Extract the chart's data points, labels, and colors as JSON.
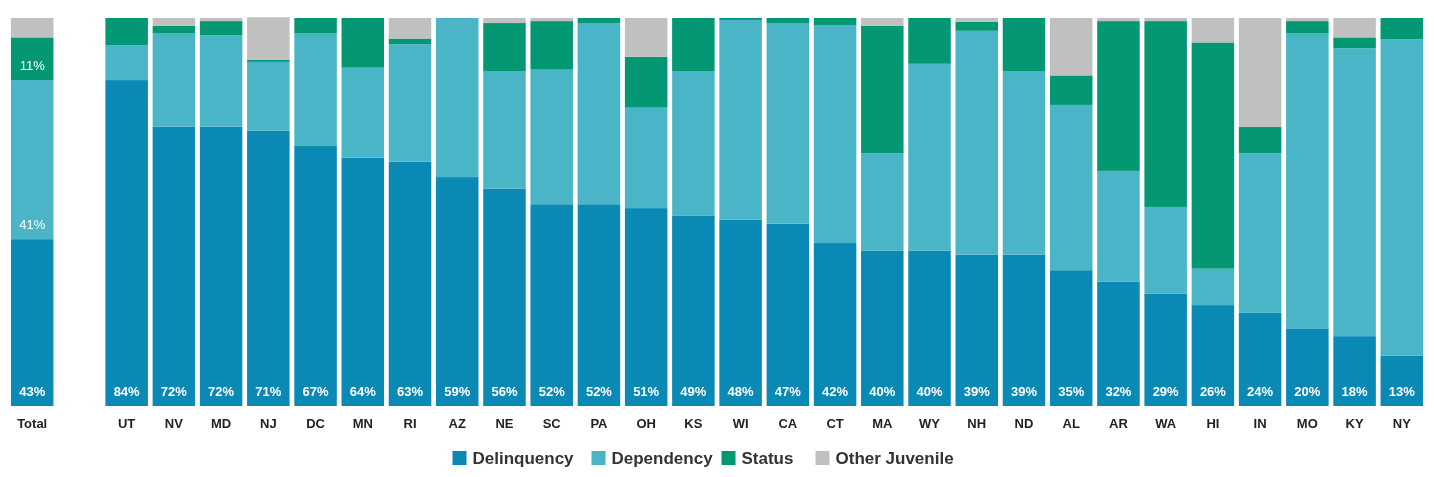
{
  "chart_data": {
    "type": "bar",
    "stacked": true,
    "legend": "bottom",
    "ylim": [
      0,
      100
    ],
    "tick_labels": "x",
    "categories": [
      "Total",
      null,
      "UT",
      "NV",
      "MD",
      "NJ",
      "DC",
      "MN",
      "RI",
      "AZ",
      "NE",
      "SC",
      "PA",
      "OH",
      "KS",
      "WI",
      "CA",
      "CT",
      "MA",
      "WY",
      "NH",
      "ND",
      "AL",
      "AR",
      "WA",
      "HI",
      "IN",
      "MO",
      "KY",
      "NY"
    ],
    "series": [
      {
        "name": "Delinquency",
        "color": "#0a89b4",
        "values": [
          43,
          null,
          84,
          72,
          72,
          71,
          67,
          64,
          63,
          59,
          56,
          52,
          52,
          51,
          49,
          48,
          47,
          42,
          40,
          40,
          39,
          39,
          35,
          32,
          29,
          26,
          24,
          20,
          18,
          13
        ],
        "value_labels": [
          "43%",
          null,
          "84%",
          "72%",
          "72%",
          "71%",
          "67%",
          "64%",
          "63%",
          "59%",
          "56%",
          "52%",
          "52%",
          "51%",
          "49%",
          "48%",
          "47%",
          "42%",
          "40%",
          "40%",
          "39%",
          "39%",
          "35%",
          "32%",
          "29%",
          "26%",
          "24%",
          "20%",
          "18%",
          "13%"
        ]
      },
      {
        "name": "Dependency",
        "color": "#4ab5c7",
        "values": [
          41,
          null,
          9,
          24,
          23.5,
          17.7,
          29,
          23.2,
          30.2,
          41,
          30.2,
          34.7,
          46.7,
          25.9,
          37.2,
          51.5,
          51.7,
          56.2,
          25.1,
          48.2,
          57.7,
          47.2,
          42.6,
          28.6,
          22.3,
          9.4,
          41.1,
          76,
          74.2,
          81.5
        ],
        "value_labels": [
          "41%",
          null,
          null,
          null,
          null,
          null,
          null,
          null,
          null,
          null,
          null,
          null,
          null,
          null,
          null,
          null,
          null,
          null,
          null,
          null,
          null,
          null,
          null,
          null,
          null,
          null,
          null,
          null,
          null,
          null
        ]
      },
      {
        "name": "Status",
        "color": "#039873",
        "values": [
          11,
          null,
          7,
          2,
          3.7,
          0.5,
          4,
          12.8,
          1.5,
          0,
          12.5,
          12.5,
          1.3,
          13.1,
          13.8,
          0.5,
          1.3,
          1.8,
          32.9,
          11.8,
          2.3,
          13.8,
          7.6,
          38.6,
          47.9,
          58.3,
          6.8,
          3.2,
          2.8,
          5.5
        ],
        "value_labels": [
          "11%",
          null,
          null,
          null,
          null,
          null,
          null,
          null,
          null,
          null,
          null,
          null,
          null,
          null,
          null,
          null,
          null,
          null,
          null,
          null,
          null,
          null,
          null,
          null,
          null,
          null,
          null,
          null,
          null,
          null
        ]
      },
      {
        "name": "Other Juvenile",
        "color": "#c0c0c0",
        "values": [
          5,
          null,
          0,
          2,
          0.8,
          11,
          0,
          0,
          5.3,
          0,
          1.3,
          0.8,
          0,
          10,
          0,
          0,
          0,
          0,
          2,
          0,
          1,
          0,
          14.8,
          0.8,
          0.8,
          6.3,
          28.1,
          0.8,
          5,
          0
        ]
      }
    ]
  }
}
